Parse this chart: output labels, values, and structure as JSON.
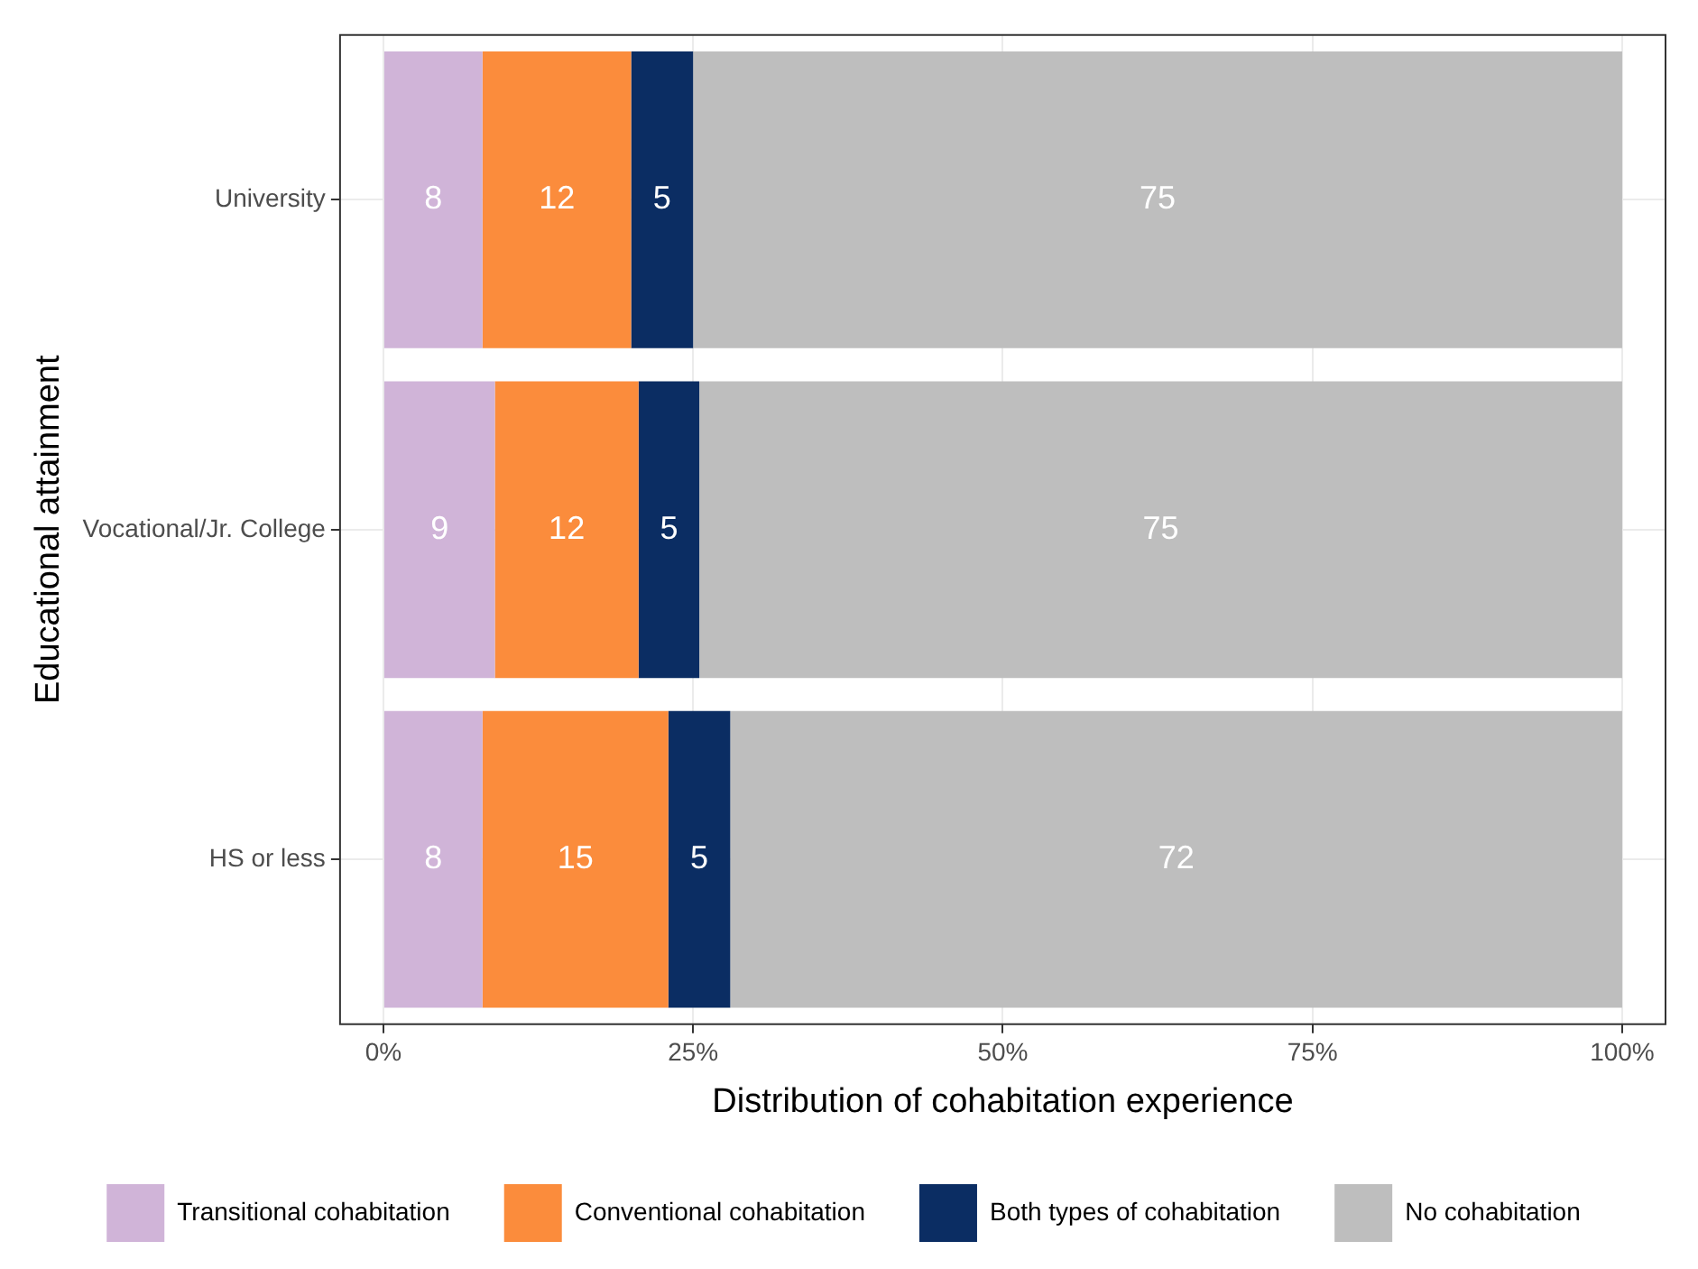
{
  "chart_data": {
    "type": "bar",
    "orientation": "horizontal",
    "stacked": true,
    "xlabel": "Distribution of cohabitation experience",
    "ylabel": "Educational attainment",
    "categories": [
      "University",
      "Vocational/Jr. College",
      "HS or less"
    ],
    "series": [
      {
        "name": "Transitional cohabitation",
        "color": "#d0b4d8",
        "values": [
          8,
          9,
          8
        ],
        "value_labels": [
          "8",
          "9",
          "8"
        ]
      },
      {
        "name": "Conventional cohabitation",
        "color": "#fb8c3c",
        "values": [
          12,
          11.6,
          15
        ],
        "value_labels": [
          "12",
          "12",
          "15"
        ]
      },
      {
        "name": "Both types of cohabitation",
        "color": "#0b2d63",
        "values": [
          5,
          4.9,
          5
        ],
        "value_labels": [
          "5",
          "5",
          "5"
        ]
      },
      {
        "name": "No cohabitation",
        "color": "#bebebe",
        "values": [
          75,
          74.5,
          72
        ],
        "value_labels": [
          "75",
          "75",
          "72"
        ]
      }
    ],
    "xlim": [
      -3.5,
      103.5
    ],
    "xticks": [
      {
        "value": 0,
        "label": "0%"
      },
      {
        "value": 25,
        "label": "25%"
      },
      {
        "value": 50,
        "label": "50%"
      },
      {
        "value": 75,
        "label": "75%"
      },
      {
        "value": 100,
        "label": "100%"
      }
    ],
    "grid": true,
    "legend": "bottom"
  }
}
